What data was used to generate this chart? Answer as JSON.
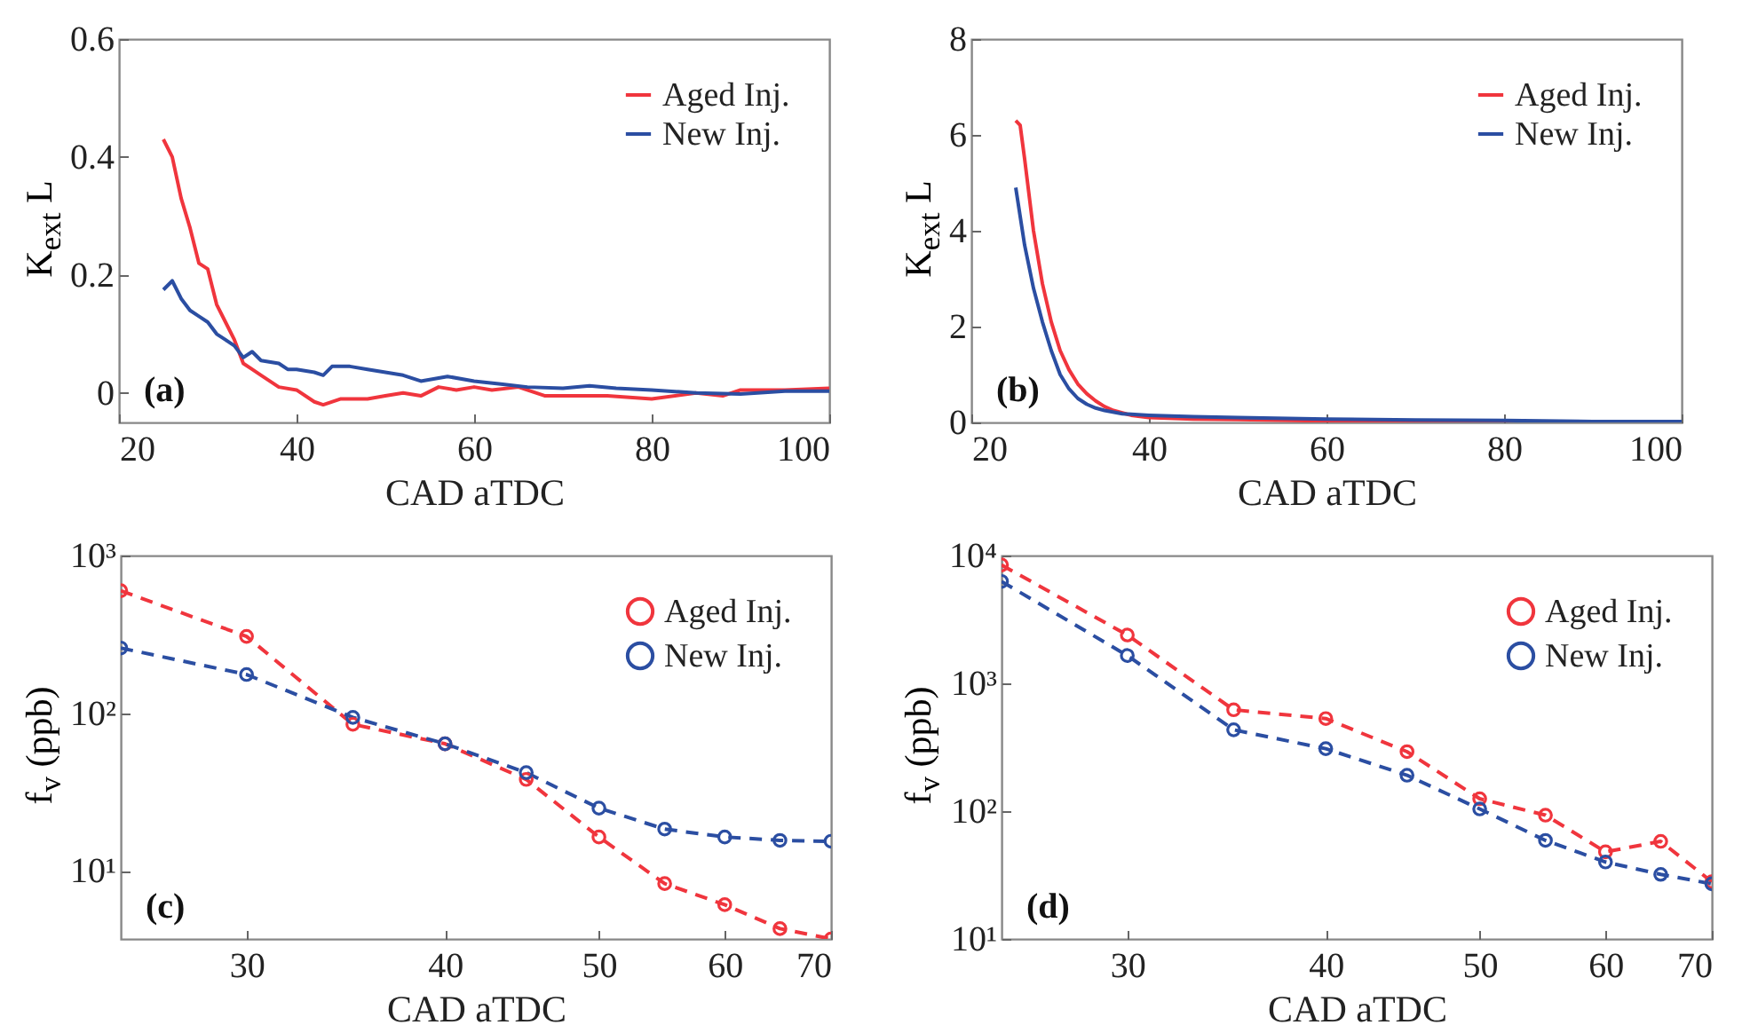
{
  "chart_data": [
    {
      "type": "line",
      "xlabel": "CAD aTDC",
      "ylabel": "K$_{ext}$ L",
      "xlim": [
        20,
        100
      ],
      "xticks": [
        20,
        40,
        60,
        80,
        100
      ],
      "ylim": [
        -0.05,
        0.6
      ],
      "yticks": [
        0,
        0.2,
        0.4,
        0.6
      ],
      "legend": "top right",
      "grid": false,
      "line_style": "solid",
      "annotations": [
        "(a)"
      ],
      "series": [
        {
          "name": "Aged Inj.",
          "color": "#f0353d",
          "x": [
            25,
            26,
            27,
            28,
            29,
            30,
            31,
            32,
            33,
            34,
            35,
            36,
            38,
            40,
            42,
            43,
            45,
            48,
            50,
            52,
            54,
            56,
            58,
            60,
            62,
            65,
            68,
            70,
            75,
            80,
            85,
            88,
            90,
            95,
            100
          ],
          "values": [
            0.43,
            0.4,
            0.33,
            0.28,
            0.22,
            0.21,
            0.15,
            0.12,
            0.09,
            0.05,
            0.04,
            0.03,
            0.01,
            0.005,
            -0.015,
            -0.02,
            -0.01,
            -0.01,
            -0.005,
            0,
            -0.005,
            0.01,
            0.005,
            0.01,
            0.005,
            0.01,
            -0.005,
            -0.005,
            -0.005,
            -0.01,
            0,
            -0.005,
            0.005,
            0.005,
            0.008
          ]
        },
        {
          "name": "New Inj.",
          "color": "#2b4ea2",
          "x": [
            25,
            26,
            27,
            28,
            29,
            30,
            31,
            32,
            33,
            34,
            35,
            36,
            38,
            39,
            40,
            42,
            43,
            44,
            46,
            48,
            50,
            52,
            54,
            57,
            60,
            63,
            66,
            70,
            73,
            76,
            80,
            85,
            90,
            95,
            100
          ],
          "values": [
            0.175,
            0.19,
            0.16,
            0.14,
            0.13,
            0.12,
            0.1,
            0.09,
            0.08,
            0.06,
            0.07,
            0.055,
            0.05,
            0.04,
            0.04,
            0.035,
            0.03,
            0.045,
            0.045,
            0.04,
            0.035,
            0.03,
            0.02,
            0.028,
            0.02,
            0.015,
            0.01,
            0.008,
            0.012,
            0.008,
            0.005,
            0,
            -0.002,
            0.003,
            0.003
          ]
        }
      ]
    },
    {
      "type": "line",
      "xlabel": "CAD aTDC",
      "ylabel": "K$_{ext}$ L",
      "xlim": [
        20,
        100
      ],
      "xticks": [
        20,
        40,
        60,
        80,
        100
      ],
      "ylim": [
        0,
        8
      ],
      "yticks": [
        0,
        2,
        4,
        6,
        8
      ],
      "legend": "top right",
      "grid": false,
      "line_style": "solid",
      "annotations": [
        "(b)"
      ],
      "series": [
        {
          "name": "Aged Inj.",
          "color": "#f0353d",
          "x": [
            25,
            25.5,
            26,
            27,
            28,
            29,
            30,
            31,
            32,
            33,
            34,
            35,
            36,
            38,
            40,
            45,
            50,
            60,
            70,
            80,
            100
          ],
          "values": [
            6.3,
            6.2,
            5.5,
            4,
            2.9,
            2.1,
            1.5,
            1.1,
            0.8,
            0.6,
            0.45,
            0.33,
            0.25,
            0.15,
            0.1,
            0.07,
            0.06,
            0.03,
            0.02,
            0.01,
            0
          ]
        },
        {
          "name": "New Inj.",
          "color": "#2b4ea2",
          "x": [
            25,
            26,
            27,
            28,
            29,
            30,
            31,
            32,
            33,
            34,
            35,
            37,
            40,
            45,
            50,
            60,
            70,
            80,
            90,
            100
          ],
          "values": [
            4.9,
            3.7,
            2.8,
            2.1,
            1.5,
            1,
            0.7,
            0.5,
            0.38,
            0.3,
            0.25,
            0.18,
            0.15,
            0.12,
            0.1,
            0.07,
            0.05,
            0.04,
            0.02,
            0.02
          ]
        }
      ]
    },
    {
      "type": "line",
      "xlabel": "CAD aTDC",
      "ylabel": "f$_{v}$ (ppb)",
      "log": "xy",
      "xlim": [
        25,
        70
      ],
      "xticks": [
        30,
        40,
        50,
        60,
        70
      ],
      "ylim": [
        3.7,
        1000
      ],
      "yticks": [
        {
          "value": 10,
          "label": "10¹"
        },
        {
          "value": 100,
          "label": "10²"
        },
        {
          "value": 1000,
          "label": "10³"
        }
      ],
      "legend": "top right",
      "grid": false,
      "line_style": "dashed",
      "marker": "circle",
      "annotations": [
        "(c)"
      ],
      "x": [
        25,
        30,
        35,
        40,
        45,
        50,
        55,
        60,
        65,
        70
      ],
      "series": [
        {
          "name": "Aged Inj.",
          "color": "#f0353d",
          "values": [
            598,
            307,
            85,
            64,
            38,
            16.4,
            8.3,
            6.1,
            4.3,
            3.7
          ]
        },
        {
          "name": "New Inj.",
          "color": "#2b4ea2",
          "values": [
            259,
            176,
            94,
            64,
            42,
            25,
            18.4,
            16.4,
            15.6,
            15.4
          ]
        }
      ]
    },
    {
      "type": "line",
      "xlabel": "CAD aTDC",
      "ylabel": "f$_{v}$ (ppb)",
      "log": "xy",
      "xlim": [
        25,
        70
      ],
      "xticks": [
        30,
        40,
        50,
        60,
        70
      ],
      "ylim": [
        10,
        10000
      ],
      "yticks": [
        {
          "value": 10,
          "label": "10¹"
        },
        {
          "value": 100,
          "label": "10²"
        },
        {
          "value": 1000,
          "label": "10³"
        },
        {
          "value": 10000,
          "label": "10⁴"
        }
      ],
      "legend": "top right",
      "grid": false,
      "line_style": "dashed",
      "marker": "circle",
      "annotations": [
        "(d)"
      ],
      "x": [
        25,
        30,
        35,
        40,
        45,
        50,
        55,
        60,
        65,
        70
      ],
      "series": [
        {
          "name": "Aged Inj.",
          "color": "#f0353d",
          "values": [
            8440,
            2390,
            621,
            530,
            292,
            125,
            93,
            48,
            58,
            28
          ]
        },
        {
          "name": "New Inj.",
          "color": "#2b4ea2",
          "values": [
            6270,
            1650,
            433,
            308,
            191,
            104,
            59,
            40,
            32,
            27
          ]
        }
      ]
    }
  ]
}
